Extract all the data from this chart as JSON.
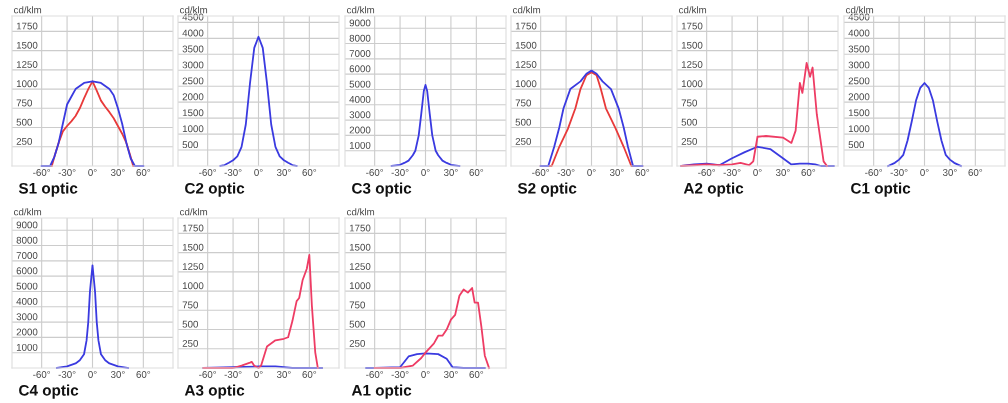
{
  "chart_data": [
    {
      "type": "line",
      "title": "S1 optic",
      "ylabel": "cd/klm",
      "xlim": [
        -95,
        95
      ],
      "ylim": [
        0,
        1950
      ],
      "xticks": [
        {
          "value": -60,
          "label": "-60°"
        },
        {
          "value": -30,
          "label": "-30°"
        },
        {
          "value": 0,
          "label": "0°"
        },
        {
          "value": 30,
          "label": "30°"
        },
        {
          "value": 60,
          "label": "60°"
        }
      ],
      "yticks": [
        250,
        500,
        750,
        1000,
        1250,
        1500,
        1750
      ],
      "grid": true,
      "series": [
        {
          "color": "#e83a3a",
          "x": [
            -48,
            -45,
            -40,
            -35,
            -30,
            -25,
            -20,
            -15,
            -10,
            -5,
            0,
            5,
            10,
            15,
            20,
            25,
            30,
            35,
            40,
            45,
            48
          ],
          "values": [
            0,
            120,
            300,
            450,
            520,
            580,
            650,
            750,
            880,
            1000,
            1100,
            980,
            850,
            770,
            700,
            620,
            520,
            420,
            300,
            120,
            0
          ]
        },
        {
          "color": "#3a3ae0",
          "x": [
            -60,
            -50,
            -45,
            -40,
            -35,
            -30,
            -25,
            -20,
            -10,
            0,
            10,
            20,
            25,
            30,
            35,
            40,
            45,
            50,
            60
          ],
          "values": [
            0,
            0,
            120,
            300,
            550,
            800,
            900,
            1000,
            1080,
            1100,
            1080,
            1000,
            920,
            750,
            550,
            300,
            100,
            0,
            0
          ]
        }
      ]
    },
    {
      "type": "line",
      "title": "C2 optic",
      "ylabel": "cd/klm",
      "xlim": [
        -95,
        95
      ],
      "ylim": [
        0,
        4700
      ],
      "xticks": [
        {
          "value": -60,
          "label": "-60°"
        },
        {
          "value": -30,
          "label": "-30°"
        },
        {
          "value": 0,
          "label": "0°"
        },
        {
          "value": 30,
          "label": "30°"
        },
        {
          "value": 60,
          "label": "60°"
        }
      ],
      "yticks": [
        500,
        1000,
        1500,
        2000,
        2500,
        3000,
        3500,
        4000,
        4500
      ],
      "grid": true,
      "series": [
        {
          "color": "#3a3ae0",
          "x": [
            -45,
            -40,
            -35,
            -30,
            -25,
            -20,
            -15,
            -10,
            -5,
            0,
            5,
            10,
            15,
            20,
            25,
            30,
            35,
            40,
            45
          ],
          "values": [
            0,
            30,
            100,
            180,
            300,
            600,
            1300,
            2600,
            3700,
            4050,
            3700,
            2600,
            1300,
            600,
            300,
            180,
            100,
            30,
            0
          ]
        }
      ]
    },
    {
      "type": "line",
      "title": "C3 optic",
      "ylabel": "cd/klm",
      "xlim": [
        -95,
        95
      ],
      "ylim": [
        0,
        9800
      ],
      "xticks": [
        {
          "value": -60,
          "label": "-60°"
        },
        {
          "value": -30,
          "label": "-30°"
        },
        {
          "value": 0,
          "label": "0°"
        },
        {
          "value": 30,
          "label": "30°"
        },
        {
          "value": 60,
          "label": "60°"
        }
      ],
      "yticks": [
        1000,
        2000,
        3000,
        4000,
        5000,
        6000,
        7000,
        8000,
        9000
      ],
      "grid": true,
      "series": [
        {
          "color": "#3a3ae0",
          "x": [
            -40,
            -30,
            -25,
            -20,
            -15,
            -12,
            -8,
            -5,
            -2,
            0,
            2,
            5,
            8,
            12,
            15,
            20,
            25,
            30,
            40
          ],
          "values": [
            0,
            80,
            200,
            350,
            700,
            1000,
            2000,
            3400,
            4900,
            5300,
            4900,
            3400,
            2000,
            1000,
            700,
            350,
            200,
            80,
            0
          ]
        }
      ]
    },
    {
      "type": "line",
      "title": "S2 optic",
      "ylabel": "cd/klm",
      "xlim": [
        -95,
        95
      ],
      "ylim": [
        0,
        1950
      ],
      "xticks": [
        {
          "value": -60,
          "label": "-60°"
        },
        {
          "value": -30,
          "label": "-30°"
        },
        {
          "value": 0,
          "label": "0°"
        },
        {
          "value": 30,
          "label": "30°"
        },
        {
          "value": 60,
          "label": "60°"
        }
      ],
      "yticks": [
        250,
        500,
        750,
        1000,
        1250,
        1500,
        1750
      ],
      "grid": true,
      "series": [
        {
          "color": "#e83a3a",
          "x": [
            -60,
            -47,
            -38,
            -28,
            -19,
            -13,
            -6,
            0,
            6,
            11,
            17,
            28,
            38,
            47,
            60
          ],
          "values": [
            0,
            0,
            250,
            480,
            750,
            1000,
            1180,
            1220,
            1180,
            1000,
            750,
            500,
            250,
            0,
            0
          ]
        },
        {
          "color": "#3a3ae0",
          "x": [
            -60,
            -51,
            -44,
            -38,
            -33,
            -25,
            -13,
            -6,
            0,
            6,
            13,
            23,
            32,
            38,
            43,
            49,
            60
          ],
          "values": [
            0,
            0,
            250,
            500,
            750,
            1000,
            1100,
            1200,
            1240,
            1200,
            1100,
            1000,
            750,
            500,
            250,
            0,
            0
          ]
        }
      ]
    },
    {
      "type": "line",
      "title": "A2 optic",
      "ylabel": "cd/klm",
      "xlim": [
        -95,
        95
      ],
      "ylim": [
        0,
        1950
      ],
      "xticks": [
        {
          "value": -60,
          "label": "-60°"
        },
        {
          "value": -30,
          "label": "-30°"
        },
        {
          "value": 0,
          "label": "0°"
        },
        {
          "value": 30,
          "label": "30°"
        },
        {
          "value": 60,
          "label": "60°"
        }
      ],
      "yticks": [
        250,
        500,
        750,
        1000,
        1250,
        1500,
        1750
      ],
      "grid": true,
      "series": [
        {
          "color": "#3a3ae0",
          "x": [
            -90,
            -75,
            -60,
            -45,
            -30,
            -15,
            0,
            15,
            30,
            40,
            50,
            60,
            68,
            75,
            90
          ],
          "values": [
            0,
            20,
            30,
            10,
            100,
            180,
            250,
            220,
            100,
            20,
            30,
            30,
            20,
            0,
            0
          ]
        },
        {
          "color": "#ee3c64",
          "x": [
            -90,
            -75,
            -60,
            -45,
            -30,
            -20,
            -10,
            -5,
            0,
            10,
            30,
            40,
            45,
            50,
            53,
            58,
            62,
            65,
            70,
            78,
            82
          ],
          "values": [
            0,
            10,
            20,
            10,
            20,
            40,
            10,
            60,
            380,
            390,
            370,
            300,
            460,
            1080,
            950,
            1340,
            1160,
            1280,
            670,
            60,
            0
          ]
        }
      ]
    },
    {
      "type": "line",
      "title": "C1 optic",
      "ylabel": "cd/klm",
      "xlim": [
        -95,
        95
      ],
      "ylim": [
        0,
        4700
      ],
      "xticks": [
        {
          "value": -60,
          "label": "-60°"
        },
        {
          "value": -30,
          "label": "-30°"
        },
        {
          "value": 0,
          "label": "0°"
        },
        {
          "value": 30,
          "label": "30°"
        },
        {
          "value": 60,
          "label": "60°"
        }
      ],
      "yticks": [
        500,
        1000,
        1500,
        2000,
        2500,
        3000,
        3500,
        4000,
        4500
      ],
      "grid": true,
      "series": [
        {
          "color": "#3a3ae0",
          "x": [
            -43,
            -35,
            -30,
            -25,
            -20,
            -15,
            -10,
            -5,
            0,
            5,
            10,
            15,
            20,
            25,
            30,
            35,
            43
          ],
          "values": [
            0,
            100,
            200,
            350,
            800,
            1400,
            2050,
            2450,
            2600,
            2450,
            2050,
            1400,
            800,
            350,
            200,
            100,
            0
          ]
        }
      ]
    },
    {
      "type": "line",
      "title": "C4 optic",
      "ylabel": "cd/klm",
      "xlim": [
        -95,
        95
      ],
      "ylim": [
        0,
        9800
      ],
      "xticks": [
        {
          "value": -60,
          "label": "-60°"
        },
        {
          "value": -30,
          "label": "-30°"
        },
        {
          "value": 0,
          "label": "0°"
        },
        {
          "value": 30,
          "label": "30°"
        },
        {
          "value": 60,
          "label": "60°"
        }
      ],
      "yticks": [
        1000,
        2000,
        3000,
        4000,
        5000,
        6000,
        7000,
        8000,
        9000
      ],
      "grid": true,
      "series": [
        {
          "color": "#3a3ae0",
          "x": [
            -42,
            -30,
            -20,
            -15,
            -10,
            -7,
            -5,
            -3,
            0,
            3,
            5,
            7,
            10,
            15,
            20,
            30,
            42
          ],
          "values": [
            0,
            100,
            300,
            500,
            900,
            1800,
            3000,
            5000,
            6700,
            5000,
            3000,
            1800,
            900,
            500,
            300,
            100,
            0
          ]
        }
      ]
    },
    {
      "type": "line",
      "title": "A3 optic",
      "ylabel": "cd/klm",
      "xlim": [
        -95,
        95
      ],
      "ylim": [
        0,
        1950
      ],
      "xticks": [
        {
          "value": -60,
          "label": "-60°"
        },
        {
          "value": -30,
          "label": "-30°"
        },
        {
          "value": 0,
          "label": "0°"
        },
        {
          "value": 30,
          "label": "30°"
        },
        {
          "value": 60,
          "label": "60°"
        }
      ],
      "yticks": [
        250,
        500,
        750,
        1000,
        1250,
        1500,
        1750
      ],
      "grid": true,
      "series": [
        {
          "color": "#3a3ae0",
          "x": [
            -65,
            -30,
            0,
            20,
            40,
            65,
            75
          ],
          "values": [
            0,
            10,
            20,
            20,
            0,
            0,
            0
          ]
        },
        {
          "color": "#ee3c64",
          "x": [
            -65,
            -30,
            -20,
            -10,
            -8,
            -5,
            0,
            3,
            10,
            20,
            30,
            35,
            40,
            45,
            48,
            52,
            57,
            60,
            63,
            67,
            70
          ],
          "values": [
            0,
            0,
            30,
            70,
            80,
            30,
            0,
            30,
            280,
            360,
            380,
            400,
            610,
            870,
            910,
            1140,
            1290,
            1470,
            810,
            200,
            0
          ]
        }
      ]
    },
    {
      "type": "line",
      "title": "A1 optic",
      "ylabel": "cd/klm",
      "xlim": [
        -95,
        95
      ],
      "ylim": [
        0,
        1950
      ],
      "xticks": [
        {
          "value": -60,
          "label": "-60°"
        },
        {
          "value": -30,
          "label": "-30°"
        },
        {
          "value": 0,
          "label": "0°"
        },
        {
          "value": 30,
          "label": "30°"
        },
        {
          "value": 60,
          "label": "60°"
        }
      ],
      "yticks": [
        250,
        500,
        750,
        1000,
        1250,
        1500,
        1750
      ],
      "grid": true,
      "series": [
        {
          "color": "#3a3ae0",
          "x": [
            -70,
            -60,
            -30,
            -20,
            -10,
            0,
            15,
            25,
            32,
            45,
            60,
            70
          ],
          "values": [
            0,
            0,
            10,
            150,
            180,
            190,
            180,
            120,
            10,
            0,
            0,
            0
          ]
        },
        {
          "color": "#ee3c64",
          "x": [
            -60,
            -30,
            -15,
            -5,
            0,
            10,
            15,
            20,
            25,
            30,
            35,
            40,
            45,
            50,
            55,
            58,
            62,
            66,
            70,
            75
          ],
          "values": [
            0,
            0,
            30,
            130,
            200,
            320,
            420,
            420,
            500,
            630,
            690,
            940,
            1020,
            980,
            1040,
            850,
            850,
            530,
            160,
            0
          ]
        }
      ]
    }
  ]
}
